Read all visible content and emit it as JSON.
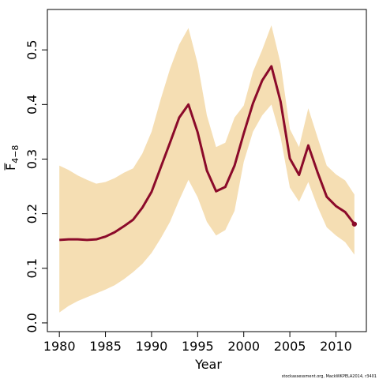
{
  "chart_data": {
    "type": "line",
    "title": "",
    "xlabel": "Year",
    "ylabel_main": "F",
    "ylabel_sub": "4−8",
    "xlim": [
      1978.7,
      2013.3
    ],
    "ylim": [
      -0.016,
      0.574
    ],
    "x_ticks": [
      1980,
      1985,
      1990,
      1995,
      2000,
      2005,
      2010
    ],
    "y_ticks": [
      0.0,
      0.1,
      0.2,
      0.3,
      0.4,
      0.5
    ],
    "y_tick_labels": [
      "0.0",
      "0.1",
      "0.2",
      "0.3",
      "0.4",
      "0.5"
    ],
    "grid": false,
    "band_color": "#f5deb3",
    "line_color": "#8b0a2a",
    "x": [
      1980,
      1981,
      1982,
      1983,
      1984,
      1985,
      1986,
      1987,
      1988,
      1989,
      1990,
      1991,
      1992,
      1993,
      1994,
      1995,
      1996,
      1997,
      1998,
      1999,
      2000,
      2001,
      2002,
      2003,
      2004,
      2005,
      2006,
      2007,
      2008,
      2009,
      2010,
      2011,
      2012
    ],
    "series": [
      {
        "values": [
          0.152,
          0.153,
          0.153,
          0.152,
          0.153,
          0.158,
          0.166,
          0.177,
          0.189,
          0.211,
          0.24,
          0.285,
          0.33,
          0.376,
          0.4,
          0.349,
          0.279,
          0.241,
          0.249,
          0.288,
          0.347,
          0.402,
          0.444,
          0.47,
          0.405,
          0.301,
          0.271,
          0.325,
          0.276,
          0.231,
          0.214,
          0.203,
          0.181
        ],
        "lower": [
          0.019,
          0.031,
          0.04,
          0.047,
          0.054,
          0.061,
          0.069,
          0.08,
          0.093,
          0.108,
          0.128,
          0.155,
          0.185,
          0.225,
          0.262,
          0.23,
          0.185,
          0.16,
          0.17,
          0.205,
          0.295,
          0.35,
          0.38,
          0.4,
          0.34,
          0.248,
          0.222,
          0.258,
          0.213,
          0.175,
          0.16,
          0.148,
          0.125
        ],
        "upper": [
          0.288,
          0.28,
          0.27,
          0.262,
          0.255,
          0.258,
          0.265,
          0.275,
          0.283,
          0.31,
          0.35,
          0.41,
          0.465,
          0.51,
          0.54,
          0.475,
          0.38,
          0.322,
          0.33,
          0.376,
          0.398,
          0.46,
          0.5,
          0.545,
          0.475,
          0.355,
          0.322,
          0.393,
          0.34,
          0.288,
          0.272,
          0.261,
          0.235
        ]
      }
    ],
    "endpoint_year": 2012,
    "endpoint_value": 0.181
  },
  "credit": "stockassessment.org, MackWKPELA2014, r3401"
}
